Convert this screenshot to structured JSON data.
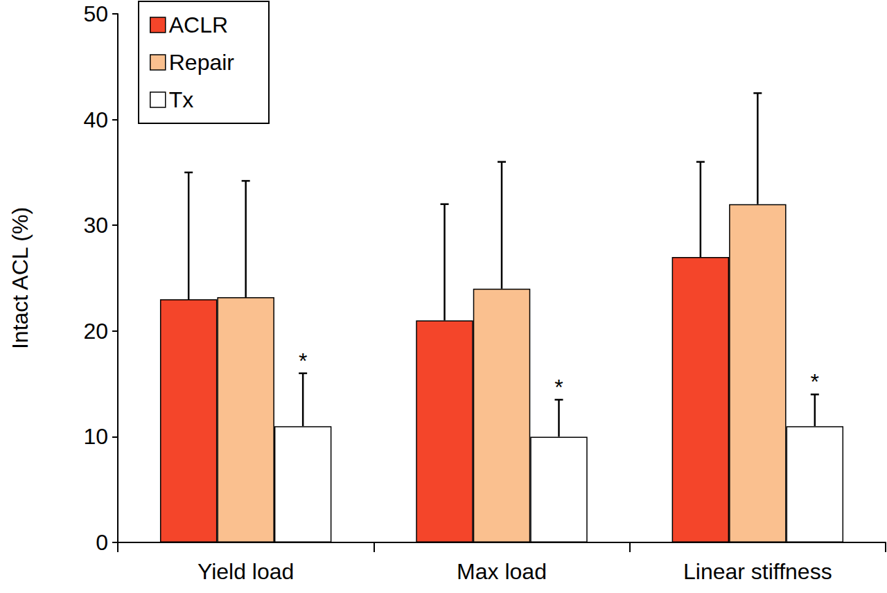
{
  "chart_data": {
    "type": "bar",
    "y_label": "Intact ACL (%)",
    "categories": [
      "Yield load",
      "Max load",
      "Linear stiffness"
    ],
    "series": [
      {
        "name": "ACLR",
        "color": "#f4452a",
        "values": [
          23,
          21,
          27
        ],
        "errors": [
          12,
          11,
          9
        ]
      },
      {
        "name": "Repair",
        "color": "#fac08f",
        "values": [
          23.2,
          24,
          32
        ],
        "errors": [
          11,
          12,
          10.5
        ]
      },
      {
        "name": "Tx",
        "color": "#ffffff",
        "values": [
          11,
          10,
          11
        ],
        "errors": [
          5,
          3.5,
          3
        ],
        "annotations": [
          "*",
          "*",
          "*"
        ]
      }
    ],
    "ylim": [
      0,
      50
    ],
    "yticks": [
      0,
      10,
      20,
      30,
      40,
      50
    ],
    "grid": false,
    "legend": "top-left"
  }
}
